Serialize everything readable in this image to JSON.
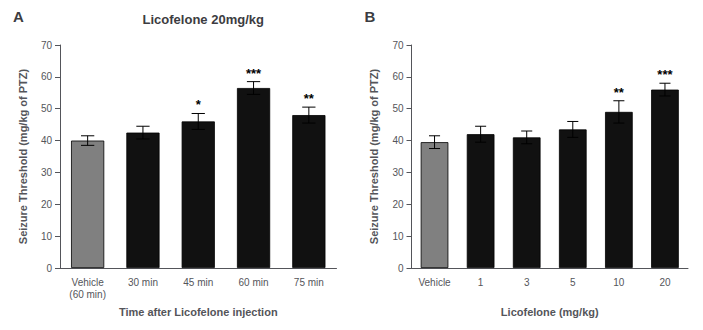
{
  "chart_data": [
    {
      "type": "bar",
      "title": "Licofelone 20mg/kg",
      "annotations": [
        "A"
      ],
      "xlabel": "Time after Licofelone injection",
      "ylabel": "Seizure Threshold (mg/kg of PTZ)",
      "categories": [
        "Vehicle\n(60 min)",
        "30 min",
        "45 min",
        "60 min",
        "75 min"
      ],
      "values": [
        40.0,
        42.5,
        46.0,
        56.5,
        48.0
      ],
      "errors": [
        1.5,
        2.0,
        2.5,
        2.0,
        2.5
      ],
      "significance": [
        null,
        null,
        "*",
        "***",
        "**"
      ],
      "colors": [
        "#808080",
        "#111111",
        "#111111",
        "#111111",
        "#111111"
      ],
      "ylim": [
        0,
        70
      ],
      "yticks": [
        0,
        10,
        20,
        30,
        40,
        50,
        60,
        70
      ],
      "grid": false
    },
    {
      "type": "bar",
      "annotations": [
        "B"
      ],
      "xlabel": "Licofelone (mg/kg)",
      "ylabel": "Seizure Threshold (mg/kg of PTZ)",
      "categories": [
        "Vehicle",
        "1",
        "3",
        "5",
        "10",
        "20"
      ],
      "values": [
        39.5,
        42.0,
        41.0,
        43.5,
        49.0,
        56.0
      ],
      "errors": [
        2.0,
        2.5,
        2.0,
        2.5,
        3.5,
        2.0
      ],
      "significance": [
        null,
        null,
        null,
        null,
        "**",
        "***"
      ],
      "colors": [
        "#808080",
        "#111111",
        "#111111",
        "#111111",
        "#111111",
        "#111111"
      ],
      "ylim": [
        0,
        70
      ],
      "yticks": [
        0,
        10,
        20,
        30,
        40,
        50,
        60,
        70
      ],
      "grid": false
    }
  ]
}
